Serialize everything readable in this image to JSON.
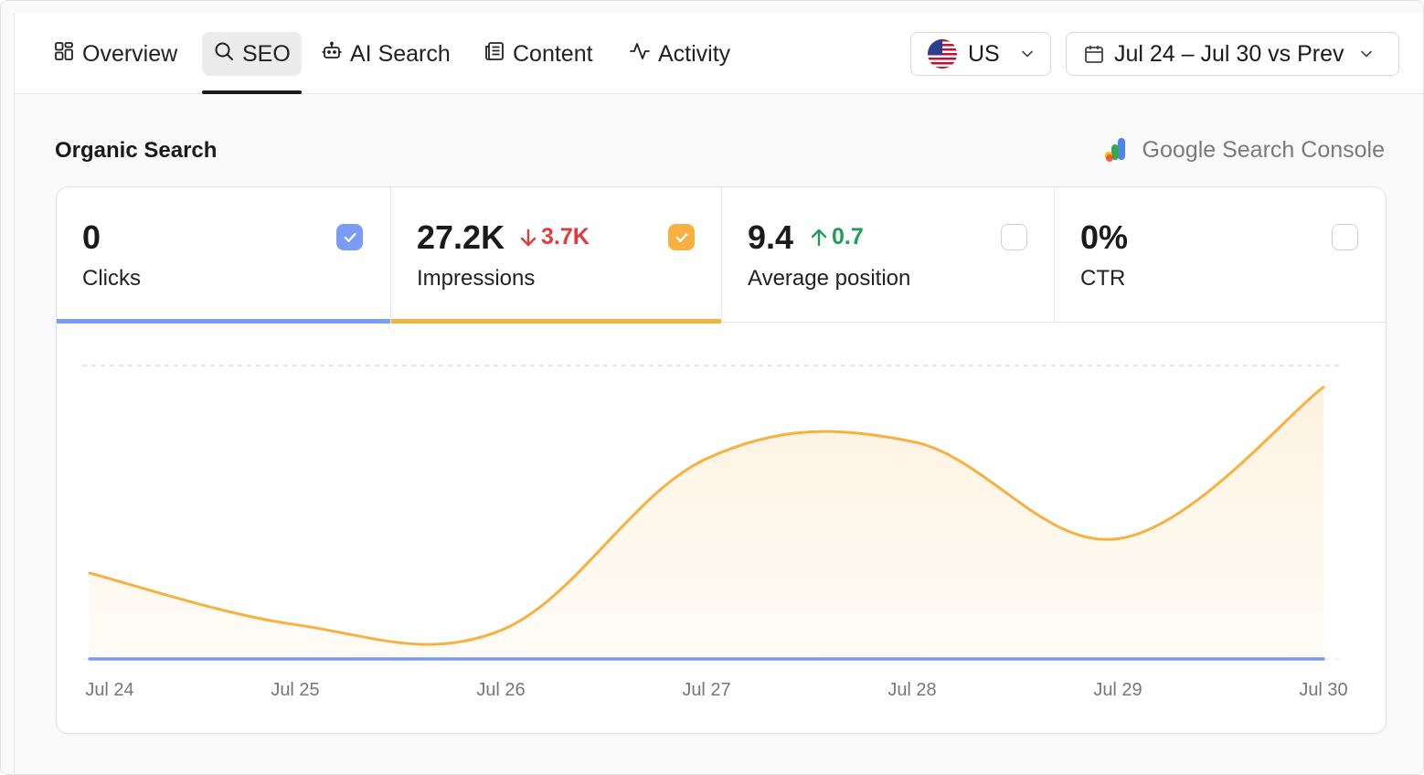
{
  "nav": {
    "tabs": [
      {
        "label": "Overview",
        "icon": "grid-icon"
      },
      {
        "label": "SEO",
        "icon": "search-icon",
        "active": true
      },
      {
        "label": "AI Search",
        "icon": "robot-icon"
      },
      {
        "label": "Content",
        "icon": "newspaper-icon"
      },
      {
        "label": "Activity",
        "icon": "pulse-icon"
      }
    ],
    "country": {
      "label": "US",
      "icon": "us-flag-icon"
    },
    "date_range": {
      "label": "Jul 24 – Jul 30 vs Prev",
      "icon": "calendar-icon"
    }
  },
  "section": {
    "title": "Organic Search",
    "source": "Google Search Console",
    "source_icon": "google-search-console-icon"
  },
  "metrics": [
    {
      "value": "0",
      "label": "Clicks",
      "delta": "",
      "delta_dir": "",
      "checked": true,
      "color": "#7b9cf4"
    },
    {
      "value": "27.2K",
      "label": "Impressions",
      "delta": "3.7K",
      "delta_dir": "down",
      "checked": true,
      "color": "#f7b140"
    },
    {
      "value": "9.4",
      "label": "Average position",
      "delta": "0.7",
      "delta_dir": "up",
      "checked": false,
      "color": ""
    },
    {
      "value": "0%",
      "label": "CTR",
      "delta": "",
      "delta_dir": "",
      "checked": false,
      "color": ""
    }
  ],
  "colors": {
    "clicks": "#7b9cf4",
    "impressions": "#f7b140",
    "delta_down": "#e03b3b",
    "delta_up": "#1f9d57"
  },
  "chart_data": {
    "type": "area",
    "x": [
      "Jul 24",
      "Jul 25",
      "Jul 26",
      "Jul 27",
      "Jul 28",
      "Jul 29",
      "Jul 30"
    ],
    "series": [
      {
        "name": "Clicks",
        "values": [
          0,
          0,
          0,
          0,
          0,
          0,
          0
        ]
      },
      {
        "name": "Impressions",
        "values": [
          30,
          12,
          10,
          70,
          76,
          42,
          95
        ]
      }
    ],
    "ylim": [
      0,
      100
    ],
    "grid": true,
    "legend": "none"
  }
}
